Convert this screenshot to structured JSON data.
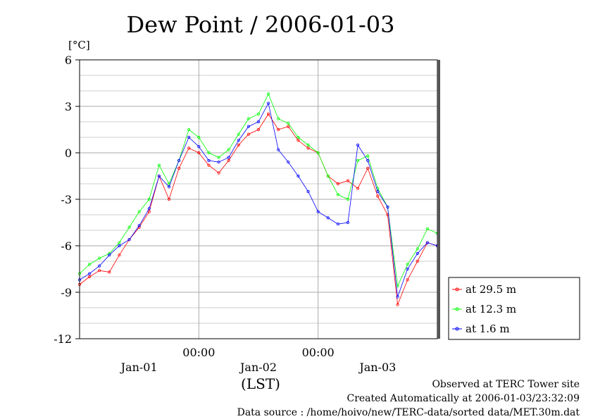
{
  "chart_data": {
    "type": "line",
    "title": "Dew Point / 2006-01-03",
    "yunit": "[°C]",
    "ylim": [
      -12,
      6
    ],
    "yticks": [
      "6",
      "3",
      "0",
      "-3",
      "-6",
      "-9",
      "-12"
    ],
    "ytick_values": [
      6,
      3,
      0,
      -3,
      -6,
      -9,
      -12
    ],
    "xlim": [
      0,
      72
    ],
    "x_time_labels": [
      {
        "label": "00:00",
        "x": 24
      },
      {
        "label": "00:00",
        "x": 48
      }
    ],
    "x_date_labels": [
      {
        "label": "Jan-01",
        "x": 12
      },
      {
        "label": "Jan-02",
        "x": 36
      },
      {
        "label": "Jan-03",
        "x": 60
      }
    ],
    "xlabel": "(LST)",
    "grid": true,
    "legend_position": "right",
    "series": [
      {
        "name": "at 29.5 m",
        "color": "#ff0000",
        "x": [
          0,
          2,
          4,
          6,
          8,
          10,
          12,
          14,
          16,
          18,
          20,
          22,
          24,
          26,
          28,
          30,
          32,
          34,
          36,
          38,
          40,
          42,
          44,
          46,
          48,
          50,
          52,
          54,
          56,
          58,
          60,
          62,
          64,
          66,
          68,
          70,
          72
        ],
        "values": [
          -8.5,
          -8.0,
          -7.6,
          -7.7,
          -6.6,
          -5.6,
          -4.8,
          -3.8,
          -1.5,
          -3.0,
          -1.0,
          0.3,
          0.0,
          -0.8,
          -1.3,
          -0.5,
          0.5,
          1.2,
          1.5,
          2.5,
          1.5,
          1.7,
          0.8,
          0.3,
          0.0,
          -1.5,
          -2.0,
          -1.8,
          -2.3,
          -1.0,
          -2.8,
          -4.0,
          -9.8,
          -8.2,
          -7.0,
          -5.8,
          -6.0
        ]
      },
      {
        "name": "at 12.3 m",
        "color": "#00ff00",
        "x": [
          0,
          2,
          4,
          6,
          8,
          10,
          12,
          14,
          16,
          18,
          20,
          22,
          24,
          26,
          28,
          30,
          32,
          34,
          36,
          38,
          40,
          42,
          44,
          46,
          48,
          50,
          52,
          54,
          56,
          58,
          60,
          62,
          64,
          66,
          68,
          70,
          72
        ],
        "values": [
          -7.8,
          -7.2,
          -6.8,
          -6.5,
          -5.8,
          -4.8,
          -3.8,
          -3.0,
          -0.8,
          -2.0,
          -0.5,
          1.5,
          1.0,
          0.0,
          -0.3,
          0.2,
          1.2,
          2.2,
          2.5,
          3.8,
          2.2,
          1.9,
          1.0,
          0.5,
          0.0,
          -1.5,
          -2.7,
          -3.0,
          -0.5,
          -0.2,
          -2.3,
          -3.5,
          -8.6,
          -7.2,
          -6.2,
          -4.9,
          -5.2
        ]
      },
      {
        "name": "at 1.6 m",
        "color": "#0000ff",
        "x": [
          0,
          2,
          4,
          6,
          8,
          10,
          12,
          14,
          16,
          18,
          20,
          22,
          24,
          26,
          28,
          30,
          32,
          34,
          36,
          38,
          40,
          42,
          44,
          46,
          48,
          50,
          52,
          54,
          56,
          58,
          60,
          62,
          64,
          66,
          68,
          70,
          72
        ],
        "values": [
          -8.2,
          -7.8,
          -7.3,
          -6.6,
          -6.0,
          -5.6,
          -4.7,
          -3.6,
          -1.5,
          -2.2,
          -0.5,
          1.0,
          0.4,
          -0.5,
          -0.6,
          -0.3,
          0.8,
          1.7,
          2.0,
          3.2,
          0.2,
          -0.6,
          -1.5,
          -2.5,
          -3.8,
          -4.2,
          -4.6,
          -4.5,
          0.5,
          -0.5,
          -2.5,
          -3.5,
          -9.3,
          -7.5,
          -6.5,
          -5.8,
          -6.0
        ]
      }
    ]
  },
  "footer": {
    "line1": "Observed at TERC Tower site",
    "line2": "Created Automatically at 2006-01-03/23:32:09",
    "line3": "Data source : /home/hoivo/new/TERC-data/sorted  data/MET.30m.dat"
  }
}
